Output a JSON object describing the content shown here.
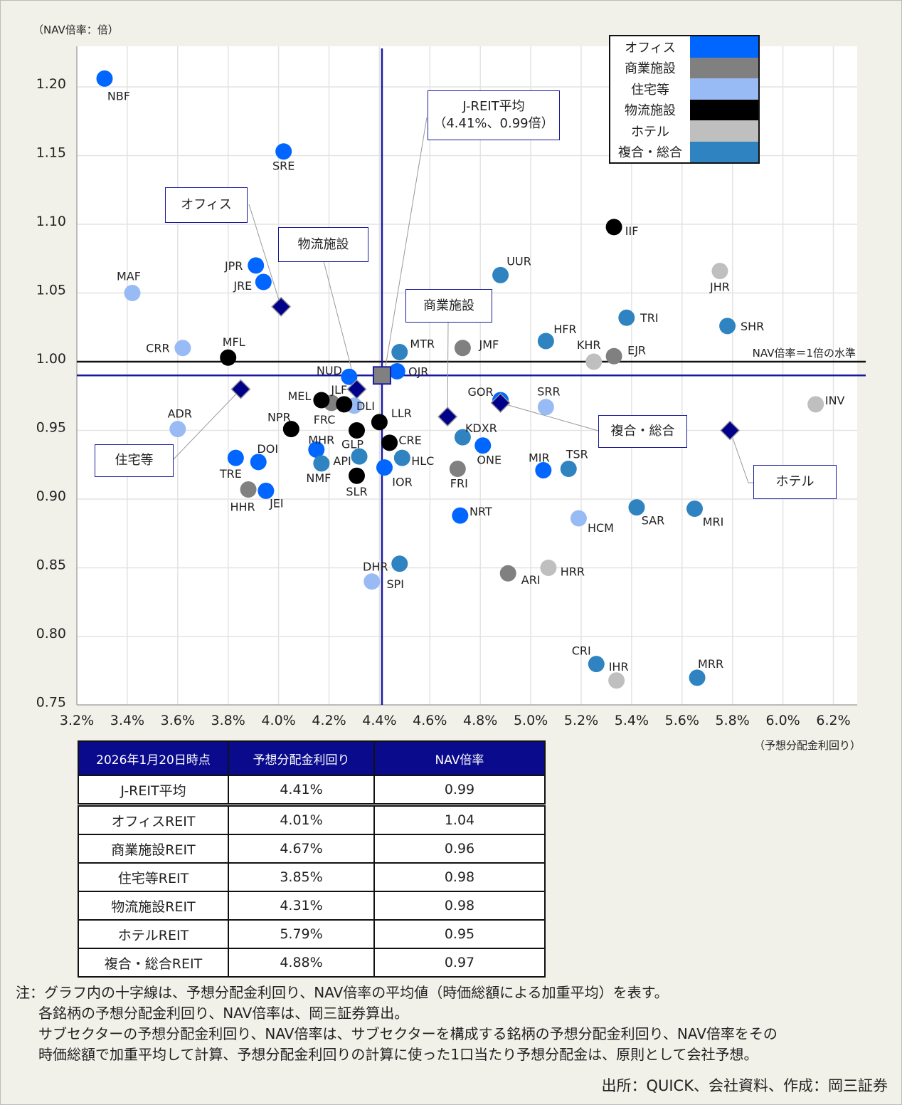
{
  "chart_data": {
    "type": "scatter",
    "ylabel": "（NAV倍率：倍）",
    "xlabel": "（予想分配金利回り）",
    "xlim": [
      3.2,
      6.3
    ],
    "ylim": [
      0.75,
      1.23
    ],
    "x_ticks": [
      "3.2%",
      "3.4%",
      "3.6%",
      "3.8%",
      "4.0%",
      "4.2%",
      "4.4%",
      "4.6%",
      "4.8%",
      "5.0%",
      "5.2%",
      "5.4%",
      "5.6%",
      "5.8%",
      "6.0%",
      "6.2%"
    ],
    "y_ticks": [
      "0.75",
      "0.80",
      "0.85",
      "0.90",
      "0.95",
      "1.00",
      "1.05",
      "1.10",
      "1.15",
      "1.20"
    ],
    "grid": true,
    "legend_placement": "top-right",
    "reference_line_label": "NAV倍率＝1倍の水準",
    "reference_line_value": 1.0,
    "average_lines": {
      "x": 4.41,
      "y": 0.99
    },
    "series": [
      {
        "name": "オフィス",
        "color": "#0066ff",
        "points": [
          {
            "label": "NBF",
            "x": 3.31,
            "y": 1.206
          },
          {
            "label": "SRE",
            "x": 4.02,
            "y": 1.153
          },
          {
            "label": "JPR",
            "x": 3.91,
            "y": 1.07
          },
          {
            "label": "JRE",
            "x": 3.94,
            "y": 1.058
          },
          {
            "label": "OJR",
            "x": 4.47,
            "y": 0.993
          },
          {
            "label": "NUD",
            "x": 4.28,
            "y": 0.989
          },
          {
            "label": "GOR",
            "x": 4.88,
            "y": 0.972
          },
          {
            "label": "ONE",
            "x": 4.81,
            "y": 0.939
          },
          {
            "label": "MHR",
            "x": 4.15,
            "y": 0.936
          },
          {
            "label": "IOR",
            "x": 4.42,
            "y": 0.923
          },
          {
            "label": "MIR",
            "x": 5.05,
            "y": 0.921
          },
          {
            "label": "DOI",
            "x": 3.92,
            "y": 0.927
          },
          {
            "label": "TRE",
            "x": 3.83,
            "y": 0.93
          },
          {
            "label": "JEI",
            "x": 3.95,
            "y": 0.906
          },
          {
            "label": "NRT",
            "x": 4.72,
            "y": 0.888
          }
        ]
      },
      {
        "name": "商業施設",
        "color": "#808080",
        "points": [
          {
            "label": "EJR",
            "x": 5.33,
            "y": 1.004
          },
          {
            "label": "JMF",
            "x": 4.73,
            "y": 1.01
          },
          {
            "label": "FRC",
            "x": 4.21,
            "y": 0.97
          },
          {
            "label": "FRI",
            "x": 4.71,
            "y": 0.922
          },
          {
            "label": "HHR",
            "x": 3.88,
            "y": 0.907
          },
          {
            "label": "ARI",
            "x": 4.91,
            "y": 0.846
          }
        ]
      },
      {
        "name": "住宅等",
        "color": "#99bbf5",
        "points": [
          {
            "label": "MAF",
            "x": 3.42,
            "y": 1.05
          },
          {
            "label": "CRR",
            "x": 3.62,
            "y": 1.01
          },
          {
            "label": "DLI",
            "x": 4.3,
            "y": 0.968
          },
          {
            "label": "SRR",
            "x": 5.06,
            "y": 0.967
          },
          {
            "label": "ADR",
            "x": 3.6,
            "y": 0.951
          },
          {
            "label": "HCM",
            "x": 5.19,
            "y": 0.886
          },
          {
            "label": "SPI",
            "x": 4.37,
            "y": 0.84
          }
        ]
      },
      {
        "name": "物流施設",
        "color": "#000000",
        "points": [
          {
            "label": "MFL",
            "x": 3.8,
            "y": 1.003
          },
          {
            "label": "IIF",
            "x": 5.33,
            "y": 1.098
          },
          {
            "label": "MEL",
            "x": 4.17,
            "y": 0.972
          },
          {
            "label": "JLF",
            "x": 4.26,
            "y": 0.969
          },
          {
            "label": "LLR",
            "x": 4.4,
            "y": 0.956
          },
          {
            "label": "NPR",
            "x": 4.05,
            "y": 0.951
          },
          {
            "label": "GLP",
            "x": 4.31,
            "y": 0.95
          },
          {
            "label": "CRE",
            "x": 4.44,
            "y": 0.941
          },
          {
            "label": "SLR",
            "x": 4.31,
            "y": 0.917
          }
        ]
      },
      {
        "name": "ホテル",
        "color": "#bfbfbf",
        "points": [
          {
            "label": "JHR",
            "x": 5.75,
            "y": 1.066
          },
          {
            "label": "KHR",
            "x": 5.25,
            "y": 1.0
          },
          {
            "label": "INV",
            "x": 6.13,
            "y": 0.969
          },
          {
            "label": "HRR",
            "x": 5.07,
            "y": 0.85
          },
          {
            "label": "IHR",
            "x": 5.34,
            "y": 0.768
          }
        ]
      },
      {
        "name": "複合・総合",
        "color": "#2e83c0",
        "points": [
          {
            "label": "UUR",
            "x": 4.88,
            "y": 1.063
          },
          {
            "label": "TRI",
            "x": 5.38,
            "y": 1.032
          },
          {
            "label": "SHR",
            "x": 5.78,
            "y": 1.026
          },
          {
            "label": "HFR",
            "x": 5.06,
            "y": 1.015
          },
          {
            "label": "MTR",
            "x": 4.48,
            "y": 1.007
          },
          {
            "label": "KDXR",
            "x": 4.73,
            "y": 0.945
          },
          {
            "label": "API",
            "x": 4.32,
            "y": 0.931
          },
          {
            "label": "HLC",
            "x": 4.49,
            "y": 0.93
          },
          {
            "label": "NMF",
            "x": 4.17,
            "y": 0.926
          },
          {
            "label": "TSR",
            "x": 5.15,
            "y": 0.922
          },
          {
            "label": "SAR",
            "x": 5.42,
            "y": 0.894
          },
          {
            "label": "MRI",
            "x": 5.65,
            "y": 0.893
          },
          {
            "label": "DHR",
            "x": 4.48,
            "y": 0.853
          },
          {
            "label": "CRI",
            "x": 5.26,
            "y": 0.78
          },
          {
            "label": "MRR",
            "x": 5.66,
            "y": 0.77
          }
        ]
      }
    ],
    "sector_averages": [
      {
        "callout": "オフィス",
        "x": 4.01,
        "y": 1.04
      },
      {
        "callout": "商業施設",
        "x": 4.67,
        "y": 0.96
      },
      {
        "callout": "住宅等",
        "x": 3.85,
        "y": 0.98
      },
      {
        "callout": "物流施設",
        "x": 4.31,
        "y": 0.98
      },
      {
        "callout": "ホテル",
        "x": 5.79,
        "y": 0.95
      },
      {
        "callout": "複合・総合",
        "x": 4.88,
        "y": 0.97
      }
    ],
    "overall_average": {
      "callout_line1": "J-REIT平均",
      "callout_line2": "（4.41%、0.99倍）",
      "x": 4.41,
      "y": 0.99
    },
    "diamond_color": "#00008b",
    "average_marker_color": "#808080"
  },
  "table": {
    "headers": [
      "2026年1月20日時点",
      "予想分配金利回り",
      "NAV倍率"
    ],
    "rows": [
      [
        "J-REIT平均",
        "4.41%",
        "0.99"
      ],
      [
        "オフィスREIT",
        "4.01%",
        "1.04"
      ],
      [
        "商業施設REIT",
        "4.67%",
        "0.96"
      ],
      [
        "住宅等REIT",
        "3.85%",
        "0.98"
      ],
      [
        "物流施設REIT",
        "4.31%",
        "0.98"
      ],
      [
        "ホテルREIT",
        "5.79%",
        "0.95"
      ],
      [
        "複合・総合REIT",
        "4.88%",
        "0.97"
      ]
    ],
    "header_color": "#0a0a8c"
  },
  "notes": [
    "注：グラフ内の十字線は、予想分配金利回り、NAV倍率の平均値（時価総額による加重平均）を表す。",
    "各銘柄の予想分配金利回り、NAV倍率は、岡三証券算出。",
    "サブセクターの予想分配金利回り、NAV倍率は、サブセクターを構成する銘柄の予想分配金利回り、NAV倍率をその",
    "時価総額で加重平均して計算、予想分配金利回りの計算に使った1口当たり予想分配金は、原則として会社予想。"
  ],
  "source": "出所：QUICK、会社資料、作成：岡三証券"
}
